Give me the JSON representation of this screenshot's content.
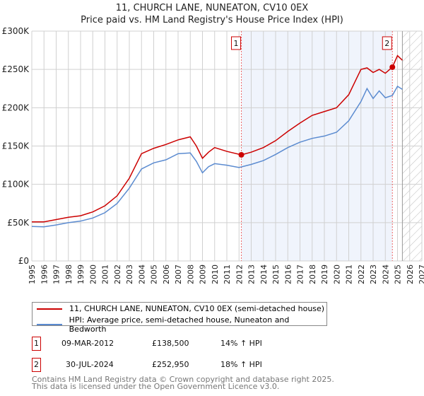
{
  "title": "11, CHURCH LANE, NUNEATON, CV10 0EX",
  "subtitle": "Price paid vs. HM Land Registry's House Price Index (HPI)",
  "chart_data": {
    "type": "line",
    "title": "11, CHURCH LANE, NUNEATON, CV10 0EX",
    "subtitle": "Price paid vs. HM Land Registry's House Price Index (HPI)",
    "xlim": [
      1995,
      2027
    ],
    "ylim": [
      0,
      300000
    ],
    "x_ticks": [
      "1995",
      "1996",
      "1997",
      "1998",
      "1999",
      "2000",
      "2001",
      "2002",
      "2003",
      "2004",
      "2005",
      "2006",
      "2007",
      "2008",
      "2009",
      "2010",
      "2011",
      "2012",
      "2013",
      "2014",
      "2015",
      "2016",
      "2017",
      "2018",
      "2019",
      "2020",
      "2021",
      "2022",
      "2023",
      "2024",
      "2025",
      "2026",
      "2027"
    ],
    "y_ticks": [
      {
        "v": 0,
        "label": "£0"
      },
      {
        "v": 50000,
        "label": "£50K"
      },
      {
        "v": 100000,
        "label": "£100K"
      },
      {
        "v": 150000,
        "label": "£150K"
      },
      {
        "v": 200000,
        "label": "£200K"
      },
      {
        "v": 250000,
        "label": "£250K"
      },
      {
        "v": 300000,
        "label": "£300K"
      }
    ],
    "grid": true,
    "shaded_range": [
      2012.19,
      2024.58
    ],
    "forecast_hatch_from": 2025.4,
    "series": [
      {
        "name": "11, CHURCH LANE, NUNEATON, CV10 0EX (semi-detached house)",
        "color": "#cc0000",
        "x": [
          1995,
          1996,
          1997,
          1998,
          1999,
          2000,
          2001,
          2002,
          2003,
          2004,
          2005,
          2006,
          2007,
          2008,
          2008.5,
          2009,
          2009.5,
          2010,
          2011,
          2012.19,
          2013,
          2014,
          2015,
          2016,
          2017,
          2018,
          2019,
          2020,
          2021,
          2022,
          2022.5,
          2023,
          2023.5,
          2024,
          2024.58,
          2025,
          2025.4
        ],
        "y": [
          51000,
          51000,
          54000,
          57000,
          59000,
          64000,
          72000,
          85000,
          108000,
          140000,
          147000,
          152000,
          158000,
          162000,
          150000,
          134000,
          142000,
          148000,
          143000,
          138500,
          142000,
          148000,
          157000,
          169000,
          180000,
          190000,
          195000,
          200000,
          217000,
          250000,
          252000,
          246000,
          250000,
          245000,
          252950,
          268000,
          262000
        ]
      },
      {
        "name": "HPI: Average price, semi-detached house, Nuneaton and Bedworth",
        "color": "#5b8bd0",
        "x": [
          1995,
          1996,
          1997,
          1998,
          1999,
          2000,
          2001,
          2002,
          2003,
          2004,
          2005,
          2006,
          2007,
          2008,
          2008.5,
          2009,
          2009.5,
          2010,
          2011,
          2012,
          2013,
          2014,
          2015,
          2016,
          2017,
          2018,
          2019,
          2020,
          2021,
          2022,
          2022.5,
          2023,
          2023.5,
          2024,
          2024.58,
          2025,
          2025.4
        ],
        "y": [
          45000,
          44500,
          47000,
          50000,
          52000,
          56000,
          63000,
          75000,
          95000,
          120000,
          128000,
          132000,
          140000,
          141000,
          130000,
          115000,
          123000,
          127000,
          125000,
          122000,
          126000,
          131000,
          139000,
          148000,
          155000,
          160000,
          163000,
          168000,
          183000,
          208000,
          225000,
          212000,
          222000,
          213000,
          216000,
          228000,
          224000
        ]
      }
    ],
    "annotations": [
      {
        "label": "1",
        "x": 2012.19,
        "y": 138500
      },
      {
        "label": "2",
        "x": 2024.58,
        "y": 252950
      }
    ]
  },
  "legend": {
    "items": [
      {
        "label": "11, CHURCH LANE, NUNEATON, CV10 0EX (semi-detached house)",
        "color": "#cc0000"
      },
      {
        "label": "HPI: Average price, semi-detached house, Nuneaton and Bedworth",
        "color": "#5b8bd0"
      }
    ]
  },
  "transactions": [
    {
      "num": "1",
      "date": "09-MAR-2012",
      "price": "£138,500",
      "hpi": "14% ↑ HPI"
    },
    {
      "num": "2",
      "date": "30-JUL-2024",
      "price": "£252,950",
      "hpi": "18% ↑ HPI"
    }
  ],
  "footer": {
    "line1": "Contains HM Land Registry data © Crown copyright and database right 2025.",
    "line2": "This data is licensed under the Open Government Licence v3.0."
  }
}
